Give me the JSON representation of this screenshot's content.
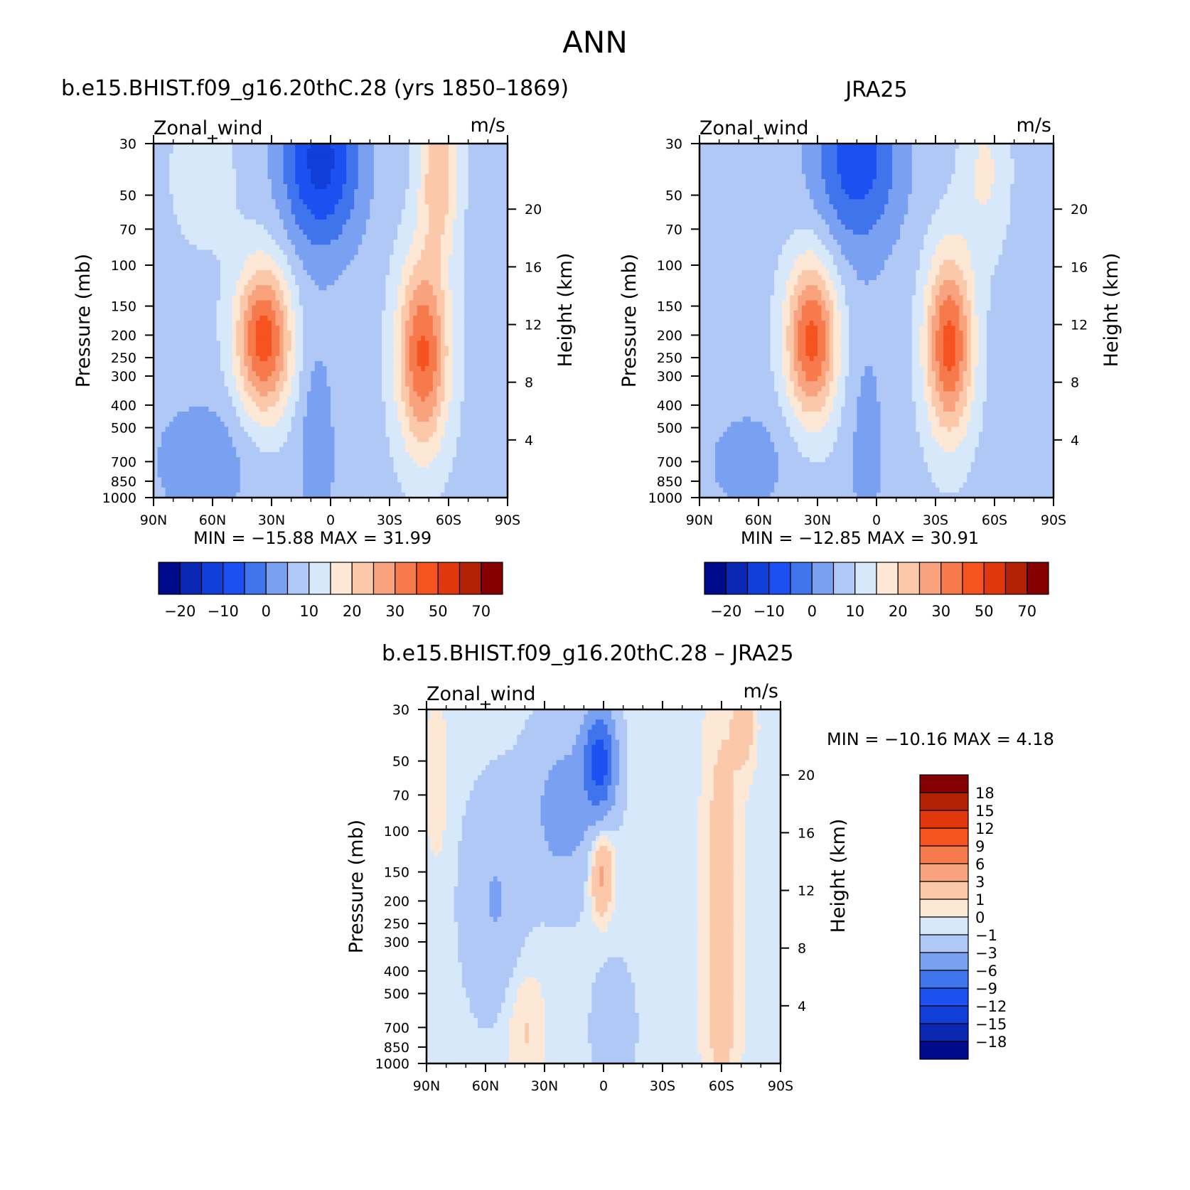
{
  "figure": {
    "title": "ANN",
    "panel_titles": [
      "b.e15.BHIST.f09_g16.20thC.28 (yrs 1850–1869)",
      "JRA25",
      "b.e15.BHIST.f09_g16.20thC.28 – JRA25"
    ],
    "variable_label": "Zonal_wind",
    "unit_label": "m/s",
    "y_axis_label": "Pressure (mb)",
    "y2_axis_label": "Height (km)",
    "x_ticks": [
      "90N",
      "60N",
      "30N",
      "0",
      "30S",
      "60S",
      "90S"
    ],
    "pressure_ticks": [
      "30",
      "50",
      "70",
      "100",
      "150",
      "200",
      "250",
      "300",
      "400",
      "500",
      "700",
      "850",
      "1000"
    ],
    "height_ticks": [
      "20",
      "16",
      "12",
      "8",
      "4"
    ]
  },
  "stats": [
    {
      "min_label": "MIN =",
      "min": "−15.88",
      "max_label": "MAX =",
      "max": "31.99"
    },
    {
      "min_label": "MIN =",
      "min": "−12.85",
      "max_label": "MAX =",
      "max": "30.91"
    },
    {
      "min_label": "MIN =",
      "min": "−10.16",
      "max_label": "MAX =",
      "max": "4.18"
    }
  ],
  "colorbars": {
    "top": {
      "colors": [
        "#000b8c",
        "#0a28b4",
        "#0f3ed8",
        "#1c50f0",
        "#3f74ec",
        "#7aa0f2",
        "#b0c8f6",
        "#d8e8fb",
        "#fde7d5",
        "#fbc8aa",
        "#f8a37e",
        "#f77a4d",
        "#f55320",
        "#e0370c",
        "#b22204",
        "#840000"
      ],
      "labels": [
        "−20",
        "−10",
        "0",
        "10",
        "20",
        "30",
        "50",
        "70"
      ]
    },
    "diff": {
      "colors": [
        "#840000",
        "#b22204",
        "#e0370c",
        "#f55320",
        "#f77a4d",
        "#f8a37e",
        "#fbc8aa",
        "#fde7d5",
        "#d8e8fb",
        "#b0c8f6",
        "#7aa0f2",
        "#3f74ec",
        "#1c50f0",
        "#0f3ed8",
        "#0a28b4",
        "#000b8c"
      ],
      "labels": [
        "18",
        "15",
        "12",
        "9",
        "6",
        "3",
        "1",
        "0",
        "−1",
        "−3",
        "−6",
        "−9",
        "−12",
        "−15",
        "−18"
      ]
    }
  },
  "chart_data": [
    {
      "type": "heatmap",
      "title": "b.e15.BHIST.f09_g16.20thC.28 (yrs 1850–1869)",
      "variable": "Zonal_wind",
      "units": "m/s",
      "x_range": [
        90,
        -90
      ],
      "pressure_range_mb": [
        1000,
        30
      ],
      "min": -15.88,
      "max": 31.99,
      "features": [
        {
          "lat": 34,
          "p": 200,
          "u": 31.99
        },
        {
          "lat": -50,
          "p": 230,
          "u": 30
        },
        {
          "lat": 5,
          "p": 40,
          "u": -15.88
        }
      ]
    },
    {
      "type": "heatmap",
      "title": "JRA25",
      "variable": "Zonal_wind",
      "units": "m/s",
      "x_range": [
        90,
        -90
      ],
      "pressure_range_mb": [
        1000,
        30
      ],
      "min": -12.85,
      "max": 30.91,
      "features": [
        {
          "lat": 34,
          "p": 200,
          "u": 30
        },
        {
          "lat": -30,
          "p": 200,
          "u": 30.91
        },
        {
          "lat": 12,
          "p": 40,
          "u": -12.85
        }
      ]
    },
    {
      "type": "heatmap",
      "title": "b.e15.BHIST.f09_g16.20thC.28 – JRA25",
      "variable": "Zonal_wind",
      "units": "m/s",
      "x_range": [
        90,
        -90
      ],
      "pressure_range_mb": [
        1000,
        30
      ],
      "min": -10.16,
      "max": 4.18,
      "features": [
        {
          "lat": 2,
          "p": 50,
          "u": -10.16
        },
        {
          "lat": 1,
          "p": 150,
          "u": 4.18
        }
      ]
    }
  ]
}
